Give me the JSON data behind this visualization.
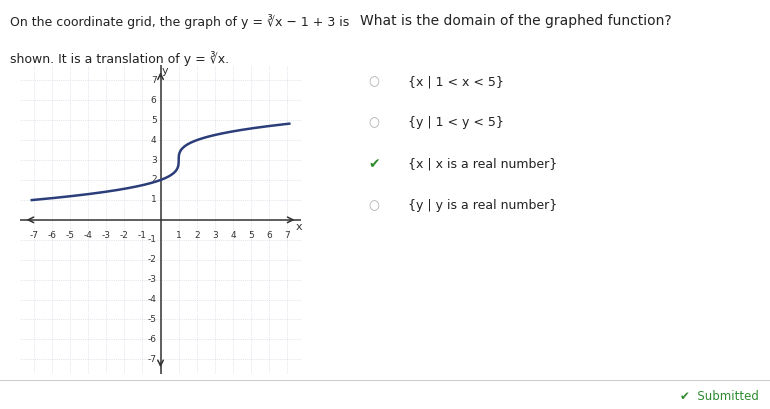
{
  "question": "What is the domain of the graphed function?",
  "choices": [
    "{x | 1 < x < 5}",
    "{y | 1 < y < 5}",
    "{x | x is a real number}",
    "{y | y is a real number}"
  ],
  "correct_index": 2,
  "xmin": -7,
  "xmax": 7,
  "ymin": -7,
  "ymax": 7,
  "curve_color": "#2c3e7a",
  "curve_linewidth": 1.8,
  "grid_color": "#c8d0dc",
  "axis_color": "#333333",
  "background_color": "#ffffff",
  "tick_fontsize": 6.5,
  "axis_label_fontsize": 8,
  "text_fontsize": 9,
  "checked_color": "#2e8b2e",
  "unchecked_color": "#aaaaaa",
  "bottom_bar_color": "#f0f0f0",
  "divider_color": "#cccccc",
  "line1": "On the coordinate grid, the graph of y = ∛x − 1 + 3 is",
  "line2": "shown. It is a translation of y = ∛x."
}
